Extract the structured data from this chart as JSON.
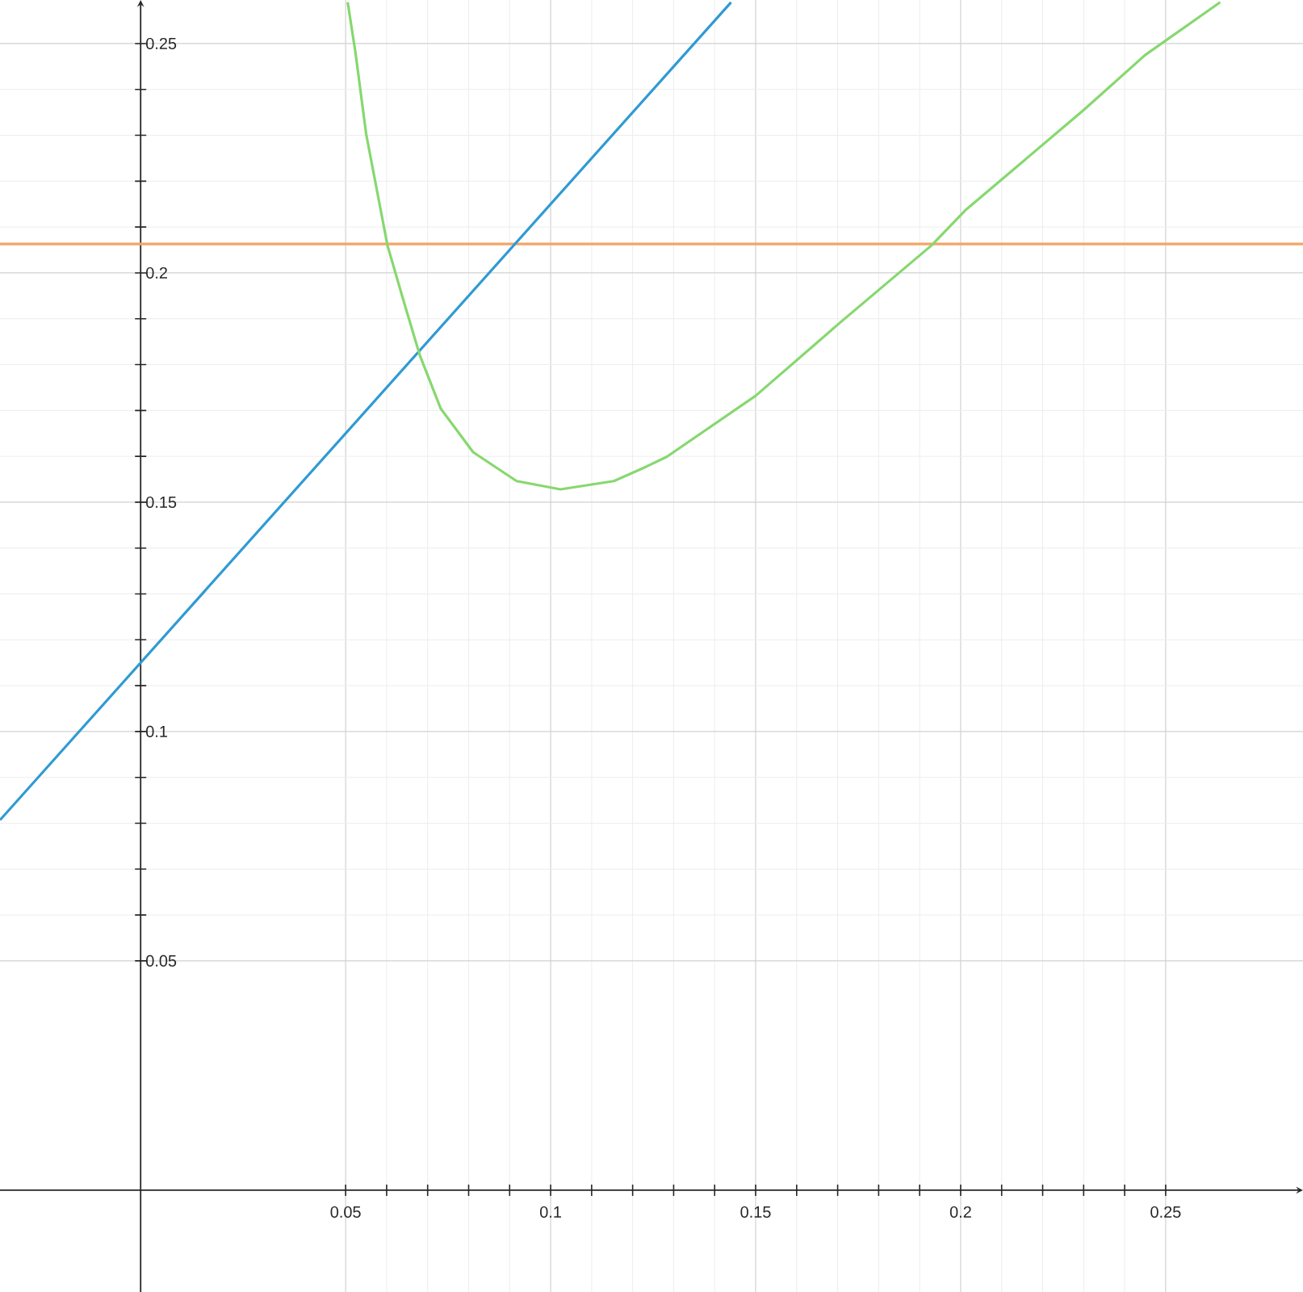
{
  "chart_data": {
    "type": "line",
    "xlim": [
      -0.0343,
      0.2835
    ],
    "ylim": [
      -0.0222,
      0.2595
    ],
    "xticks": [
      0.05,
      0.1,
      0.15,
      0.2,
      0.25
    ],
    "yticks": [
      0.05,
      0.1,
      0.15,
      0.2,
      0.25
    ],
    "grid": true,
    "marker": "none",
    "line_style": "solid",
    "series": [
      {
        "color": "#2f9ad3",
        "x": [
          -0.0343,
          0.144
        ],
        "values": [
          0.0807,
          0.259
        ]
      },
      {
        "color": "#86d86f",
        "x": [
          0.0505,
          0.0524,
          0.055,
          0.0602,
          0.0642,
          0.0681,
          0.0732,
          0.0811,
          0.0917,
          0.1024,
          0.1154,
          0.1232,
          0.1283,
          0.15,
          0.1705,
          0.1929,
          0.2012,
          0.23,
          0.245,
          0.2633
        ],
        "values": [
          0.259,
          0.248,
          0.2303,
          0.206,
          0.1937,
          0.182,
          0.1704,
          0.1609,
          0.1546,
          0.1528,
          0.1546,
          0.1577,
          0.1599,
          0.1732,
          0.1891,
          0.206,
          0.2137,
          0.2355,
          0.2475,
          0.259
        ]
      }
    ],
    "ref_lines": [
      {
        "axis": "y",
        "value": 0.2063,
        "color": "#f4a463"
      }
    ]
  }
}
